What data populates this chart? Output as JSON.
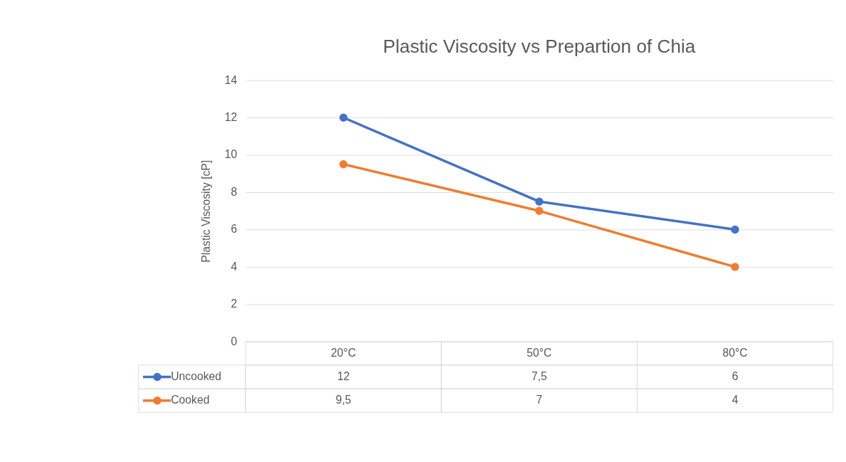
{
  "chart_data": {
    "type": "line",
    "title": "Plastic Viscosity vs Prepartion of Chia",
    "ylabel": "Plastic Viscosity [cP]",
    "categories": [
      "20°C",
      "50°C",
      "80°C"
    ],
    "series": [
      {
        "name": "Uncooked",
        "color": "#4472c4",
        "values": [
          12,
          7.5,
          6
        ],
        "value_labels": [
          "12",
          "7,5",
          "6"
        ]
      },
      {
        "name": "Cooked",
        "color": "#ed7d31",
        "values": [
          9.5,
          7,
          4
        ],
        "value_labels": [
          "9,5",
          "7",
          "4"
        ]
      }
    ],
    "ylim": [
      0,
      14
    ],
    "yticks": [
      0,
      2,
      4,
      6,
      8,
      10,
      12,
      14
    ],
    "grid": "y",
    "legend": "bottom",
    "marker": "circle",
    "line_style": "solid"
  }
}
